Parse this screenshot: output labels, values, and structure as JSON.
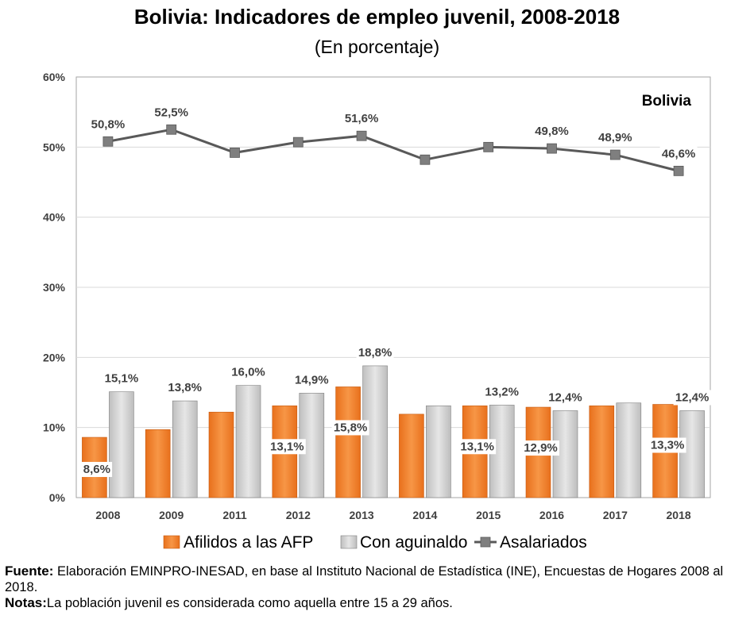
{
  "title": "Bolivia: Indicadores de empleo juvenil, 2008-2018",
  "subtitle": "(En porcentaje)",
  "chart_data": {
    "type": "bar",
    "panel_label": "Bolivia",
    "categories": [
      "2008",
      "2009",
      "2011",
      "2012",
      "2013",
      "2014",
      "2015",
      "2016",
      "2017",
      "2018"
    ],
    "ylim": [
      0,
      60
    ],
    "yticks": [
      "0%",
      "10%",
      "20%",
      "30%",
      "40%",
      "50%",
      "60%"
    ],
    "grid": true,
    "legend_position": "bottom",
    "series": [
      {
        "name": "Afilidos a las AFP",
        "type": "bar",
        "color": "#F07F2A",
        "values": [
          8.6,
          9.7,
          12.2,
          13.1,
          15.8,
          11.9,
          13.1,
          12.9,
          13.1,
          13.3
        ],
        "labels": [
          "8,6%",
          "",
          "",
          "13,1%",
          "15,8%",
          "",
          "13,1%",
          "12,9%",
          "",
          "13,3%"
        ]
      },
      {
        "name": "Con aguinaldo",
        "type": "bar",
        "color": "#D3D3D3",
        "values": [
          15.1,
          13.8,
          16.0,
          14.9,
          18.8,
          13.1,
          13.2,
          12.4,
          13.5,
          12.4
        ],
        "labels": [
          "15,1%",
          "13,8%",
          "16,0%",
          "14,9%",
          "18,8%",
          "",
          "13,2%",
          "12,4%",
          "",
          "12,4%"
        ]
      },
      {
        "name": "Asalariados",
        "type": "line",
        "color": "#595959",
        "values": [
          50.8,
          52.5,
          49.2,
          50.7,
          51.6,
          48.2,
          50.0,
          49.8,
          48.9,
          46.6
        ],
        "labels": [
          "50,8%",
          "52,5%",
          "",
          "",
          "51,6%",
          "",
          "",
          "49,8%",
          "48,9%",
          "46,6%"
        ]
      }
    ]
  },
  "notes": {
    "source_label": "Fuente:",
    "source_text": " Elaboración EMINPRO-INESAD, en base al Instituto Nacional de Estadística (INE), Encuestas de Hogares 2008 al 2018.",
    "notes_label": "Notas:",
    "notes_text": "La población juvenil es considerada como aquella entre 15 a 29 años."
  }
}
